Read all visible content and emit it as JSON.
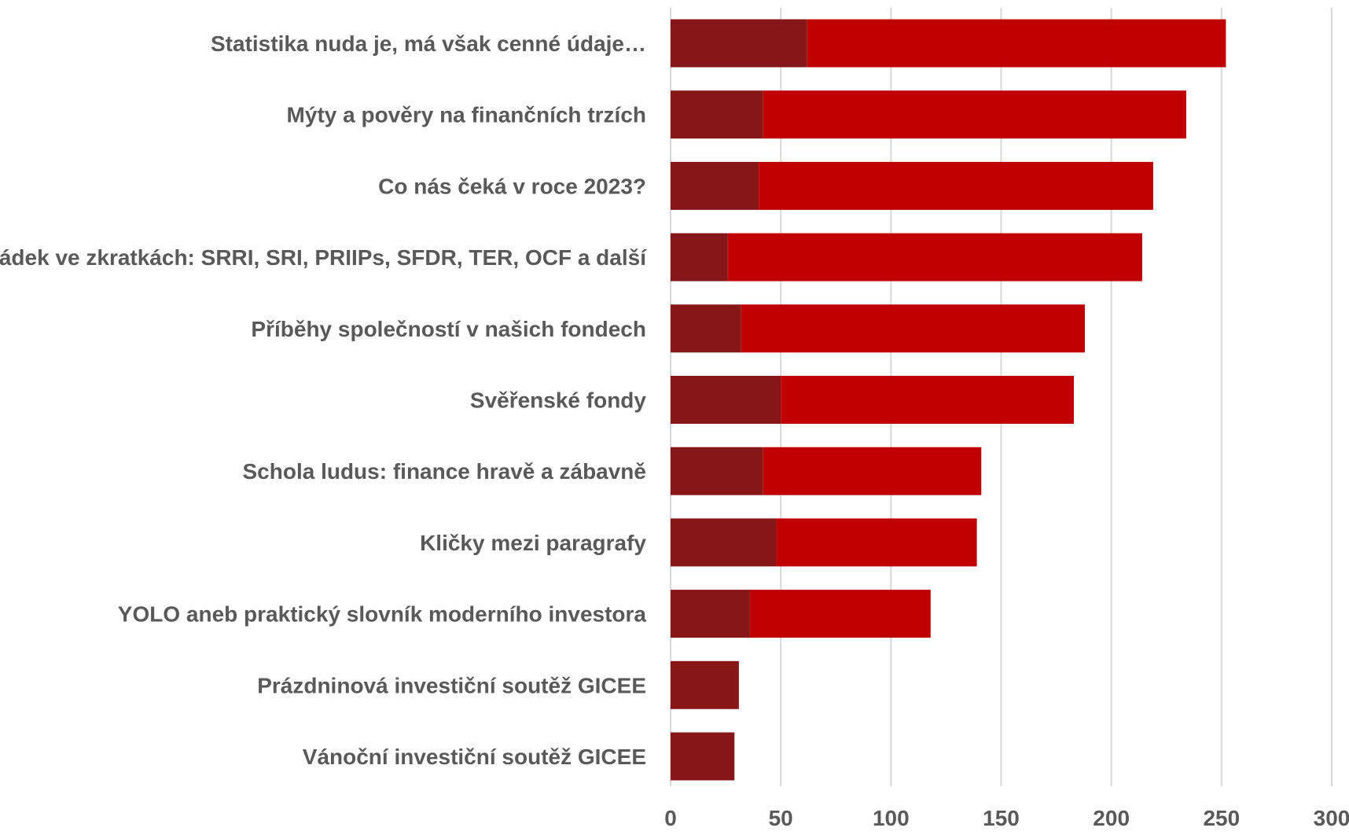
{
  "chart_data": {
    "type": "bar",
    "orientation": "horizontal",
    "stacked": true,
    "categories": [
      "Statistika nuda je, má však cenné údaje…",
      "Mýty a pověry na finančních trzích",
      "Co nás čeká v roce 2023?",
      "Pořádek ve zkratkách: SRRI, SRI, PRIIPs, SFDR, TER, OCF a další",
      "Příběhy společností v našich fondech",
      "Svěřenské fondy",
      "Schola ludus: finance hravě a zábavně",
      "Kličky mezi paragrafy",
      "YOLO aneb praktický slovník moderního investora",
      "Prázdninová investiční soutěž GICEE",
      "Vánoční investiční soutěž GICEE"
    ],
    "series": [
      {
        "values": [
          62,
          42,
          40,
          26,
          32,
          50,
          42,
          48,
          36,
          31,
          29
        ],
        "color": "#861617"
      },
      {
        "values": [
          190,
          192,
          179,
          188,
          156,
          133,
          99,
          91,
          82,
          0,
          0
        ],
        "color": "#c00000"
      }
    ],
    "xlim": [
      0,
      300
    ],
    "xticks": [
      0,
      50,
      100,
      150,
      200,
      250,
      300
    ],
    "tick_labels": [
      "0",
      "50",
      "100",
      "150",
      "200",
      "250",
      "300"
    ],
    "grid": true,
    "legend": "none",
    "title": "",
    "xlabel": "",
    "ylabel": ""
  }
}
